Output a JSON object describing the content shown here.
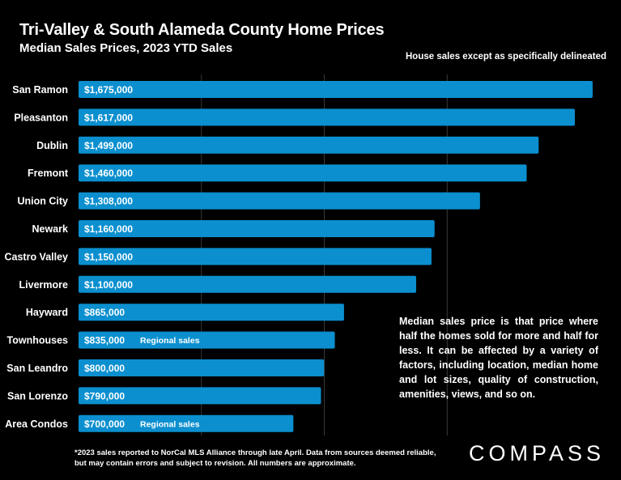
{
  "chart_data": {
    "type": "bar",
    "orientation": "horizontal",
    "title": "Tri-Valley & South Alameda County Home Prices",
    "subtitle": "Median Sales Prices, 2023 YTD Sales",
    "categories": [
      "San Ramon",
      "Pleasanton",
      "Dublin",
      "Fremont",
      "Union City",
      "Newark",
      "Castro Valley",
      "Livermore",
      "Hayward",
      "Townhouses",
      "San Leandro",
      "San Lorenzo",
      "Area Condos"
    ],
    "values": [
      1675000,
      1617000,
      1499000,
      1460000,
      1308000,
      1160000,
      1150000,
      1100000,
      865000,
      835000,
      800000,
      790000,
      700000
    ],
    "value_labels": [
      "$1,675,000",
      "$1,617,000",
      "$1,499,000",
      "$1,460,000",
      "$1,308,000",
      "$1,160,000",
      "$1,150,000",
      "$1,100,000",
      "$865,000",
      "$835,000",
      "$800,000",
      "$790,000",
      "$700,000"
    ],
    "annotations": [
      "",
      "",
      "",
      "",
      "",
      "",
      "",
      "",
      "",
      "Regional sales",
      "",
      "",
      "Regional sales"
    ],
    "xlim": [
      0,
      1675000
    ],
    "bar_color": "#0b8fcf",
    "grid": true
  },
  "top_note": "House sales except as specifically delineated",
  "explanation": "Median sales price is that price where half the homes sold for more and half for less. It can be affected by a variety of factors, including location, median home and lot sizes, quality of construction, amenities, views, and so on.",
  "footnote": "*2023 sales reported to NorCal MLS Alliance through late April. Data from sources deemed reliable, but may contain errors and subject to revision. All numbers are approximate.",
  "brand": "COMPASS"
}
